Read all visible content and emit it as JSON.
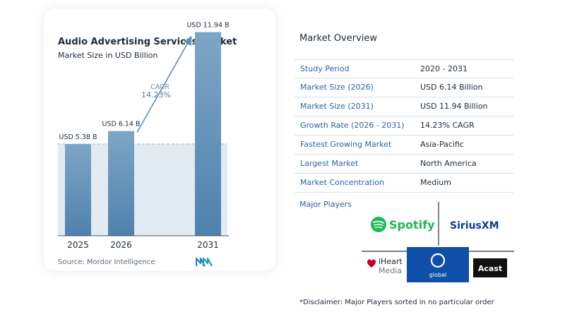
{
  "chart_card": {
    "title": "Audio Advertising Services Market",
    "subtitle": "Market Size in USD Billion",
    "source": "Source:  Mordor Intelligence",
    "logo": "mordor-intelligence-logo"
  },
  "chart_data": {
    "type": "bar",
    "title": "Audio Advertising Services Market",
    "subtitle": "Market Size in USD Billion",
    "categories": [
      "2025",
      "2026",
      "2031"
    ],
    "values": [
      5.38,
      6.14,
      11.94
    ],
    "data_labels": [
      "USD 5.38 B",
      "USD 6.14 B",
      "USD 11.94 B"
    ],
    "unit": "USD Billion",
    "annotation": {
      "label": "CAGR",
      "value": "14.23%",
      "from": "2026",
      "to": "2031"
    },
    "reference_line_value": 5.38,
    "ylim": [
      0,
      12.5
    ],
    "grid": false,
    "colors": {
      "bar_top": "#7ea6c6",
      "bar_bottom": "#4f81ad",
      "reference_fill": "#e3ebf2",
      "reference_line": "#9db4c8",
      "arrow": "#5d8fc2"
    }
  },
  "overview": {
    "title": "Market Overview",
    "rows": [
      {
        "label": "Study Period",
        "value": "2020 - 2031"
      },
      {
        "label": "Market Size (2026)",
        "value": "USD 6.14 Billion"
      },
      {
        "label": "Market Size (2031)",
        "value": "USD 11.94 Billion"
      },
      {
        "label": "Growth Rate (2026 - 2031)",
        "value": "14.23% CAGR"
      },
      {
        "label": "Fastest Growing Market",
        "value": "Asia-Pacific"
      },
      {
        "label": "Largest Market",
        "value": "North America"
      },
      {
        "label": "Market Concentration",
        "value": "Medium"
      }
    ]
  },
  "players": {
    "label": "Major Players",
    "logos": {
      "spotify": {
        "text": "Spotify",
        "icon": "spotify-icon",
        "color": "#1db954"
      },
      "siriusxm": {
        "text": "SiriusXM",
        "color": "#0b3d91"
      },
      "iheart": {
        "line1": "iHeart",
        "line2": "Media",
        "icon": "iheart-icon",
        "color": "#c6002b"
      },
      "global": {
        "text": "global",
        "icon": "global-icon",
        "color": "#1b6fd0"
      },
      "acast": {
        "text": "Acast",
        "color": "#111111"
      }
    }
  },
  "disclaimer": "*Disclaimer: Major Players sorted in no particular order"
}
